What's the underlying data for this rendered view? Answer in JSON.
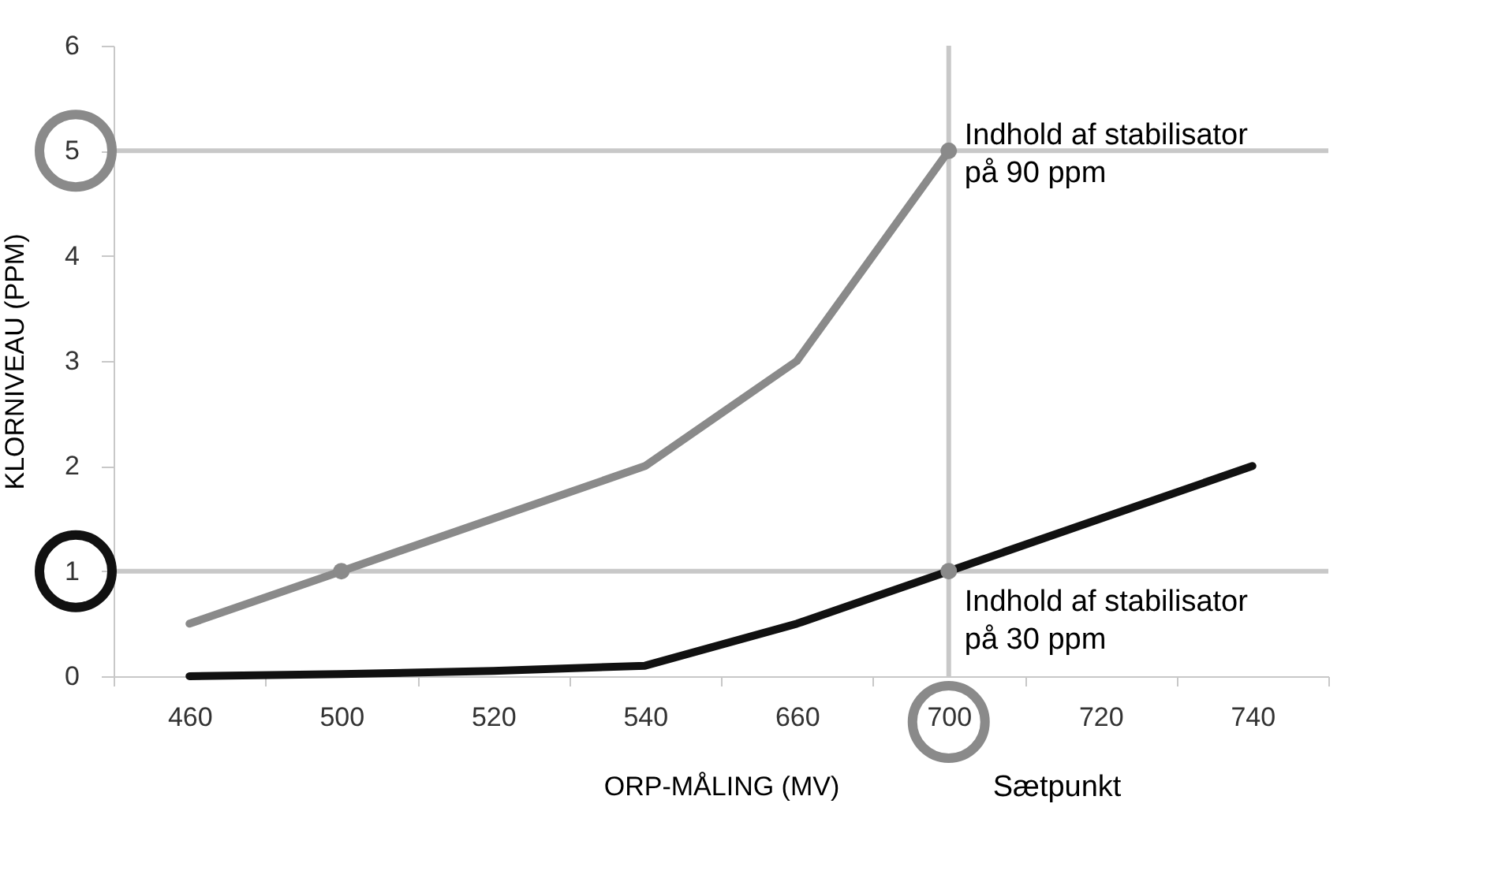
{
  "chart_data": {
    "type": "line",
    "xlabel": "ORP-MÅLING (MV)",
    "ylabel": "KLORNIVEAU (PPM)",
    "categories": [
      "460",
      "500",
      "520",
      "540",
      "660",
      "700",
      "720",
      "740"
    ],
    "series": [
      {
        "color": "#8a8a8a",
        "values": [
          0.5,
          1,
          1.5,
          2,
          3,
          5,
          null,
          null
        ]
      },
      {
        "color": "#111111",
        "values": [
          0,
          0.02,
          0.05,
          0.1,
          0.5,
          1,
          1.5,
          2
        ]
      },
      {
        "type": "scatter",
        "color": "#8a8a8a",
        "x": [
          "500",
          "700",
          "700"
        ],
        "values": [
          1,
          5,
          1
        ]
      }
    ],
    "ylim": [
      0,
      6
    ],
    "yticks": [
      0,
      1,
      2,
      3,
      4,
      5,
      6
    ],
    "grid": false,
    "ref_lines": [
      {
        "axis": "y",
        "value": 5,
        "color": "#c8c8c8"
      },
      {
        "axis": "y",
        "value": 1,
        "color": "#c8c8c8"
      },
      {
        "axis": "x",
        "value": "700",
        "color": "#c8c8c8"
      }
    ],
    "annotations": [
      {
        "text": "Indhold af stabilisator\npå 90 ppm",
        "x": "700",
        "y": 5
      },
      {
        "text": "Indhold af stabilisator\npå 30 ppm",
        "x": "700",
        "y": 1
      },
      "Sætpunkt"
    ]
  }
}
